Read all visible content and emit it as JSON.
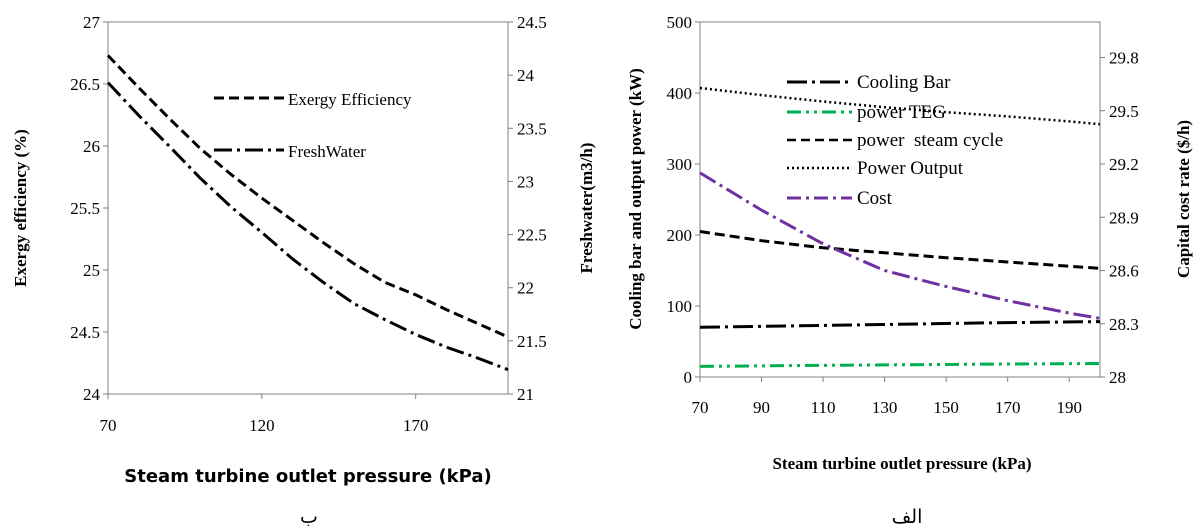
{
  "chart_data": [
    {
      "type": "line",
      "caption": "ب",
      "xlabel": "Steam turbine outlet pressure (kPa)",
      "ylabel": "Exergy efficiency (%)",
      "y2label": "Freshwater(m3/h)",
      "xlim": [
        70,
        200
      ],
      "ylim": [
        24,
        27
      ],
      "y2lim": [
        21,
        24.5
      ],
      "xticks": [
        "70",
        "120",
        "170"
      ],
      "yticks": [
        "24",
        "24.5",
        "25",
        "25.5",
        "26",
        "26.5",
        "27"
      ],
      "y2ticks": [
        "21",
        "21.5",
        "22",
        "22.5",
        "23",
        "23.5",
        "24",
        "24.5"
      ],
      "legend_position": "top-right",
      "series": [
        {
          "name": "Exergy Efficiency",
          "axis": "left",
          "style": "dashed",
          "color": "#000000",
          "x": [
            70,
            80,
            90,
            100,
            110,
            120,
            130,
            140,
            150,
            160,
            170,
            180,
            190,
            200
          ],
          "y": [
            26.73,
            26.47,
            26.22,
            25.98,
            25.77,
            25.58,
            25.4,
            25.22,
            25.05,
            24.9,
            24.8,
            24.68,
            24.57,
            24.46
          ]
        },
        {
          "name": "FreshWater",
          "axis": "right",
          "style": "dash-dot",
          "color": "#000000",
          "x": [
            70,
            80,
            90,
            100,
            110,
            120,
            130,
            140,
            150,
            160,
            170,
            180,
            190,
            200
          ],
          "y": [
            23.93,
            23.62,
            23.33,
            23.03,
            22.76,
            22.52,
            22.27,
            22.05,
            21.85,
            21.7,
            21.56,
            21.44,
            21.34,
            21.23
          ]
        }
      ]
    },
    {
      "type": "line",
      "caption": "الف",
      "xlabel": "Steam turbine outlet pressure (kPa)",
      "ylabel": "Cooling bar and output power (kW)",
      "y2label": "Capital cost rate ($/h)",
      "xlim": [
        70,
        200
      ],
      "ylim": [
        0,
        500
      ],
      "y2lim": [
        28,
        30
      ],
      "xticks": [
        "70",
        "90",
        "110",
        "130",
        "150",
        "170",
        "190"
      ],
      "yticks": [
        "0",
        "100",
        "200",
        "300",
        "400",
        "500"
      ],
      "y2ticks": [
        "28",
        "28.3",
        "28.6",
        "28.9",
        "29.2",
        "29.5",
        "29.8"
      ],
      "legend_position": "top-center",
      "series": [
        {
          "name": "Cooling Bar",
          "axis": "left",
          "style": "long-dash-dot",
          "color": "#000000",
          "x": [
            70,
            100,
            130,
            160,
            200
          ],
          "y": [
            70,
            72,
            74,
            76,
            78
          ]
        },
        {
          "name": "power TEG",
          "axis": "left",
          "style": "dash-dot-dot",
          "color": "#00b050",
          "x": [
            70,
            100,
            130,
            160,
            200
          ],
          "y": [
            15,
            16,
            17,
            18,
            19
          ]
        },
        {
          "name": "power  steam cycle",
          "axis": "left",
          "style": "dashed",
          "color": "#000000",
          "x": [
            70,
            90,
            110,
            130,
            150,
            170,
            190,
            200
          ],
          "y": [
            205,
            192,
            182,
            175,
            168,
            162,
            156,
            153
          ]
        },
        {
          "name": "Power Output",
          "axis": "left",
          "style": "dotted",
          "color": "#000000",
          "x": [
            70,
            90,
            110,
            130,
            150,
            170,
            190,
            200
          ],
          "y": [
            407,
            397,
            388,
            380,
            373,
            367,
            360,
            356
          ]
        },
        {
          "name": "Cost",
          "axis": "right",
          "style": "dash-dot",
          "color": "#7030a0",
          "x": [
            70,
            90,
            110,
            130,
            150,
            170,
            190,
            200
          ],
          "y": [
            29.15,
            28.94,
            28.75,
            28.6,
            28.51,
            28.43,
            28.36,
            28.33
          ]
        }
      ]
    }
  ]
}
